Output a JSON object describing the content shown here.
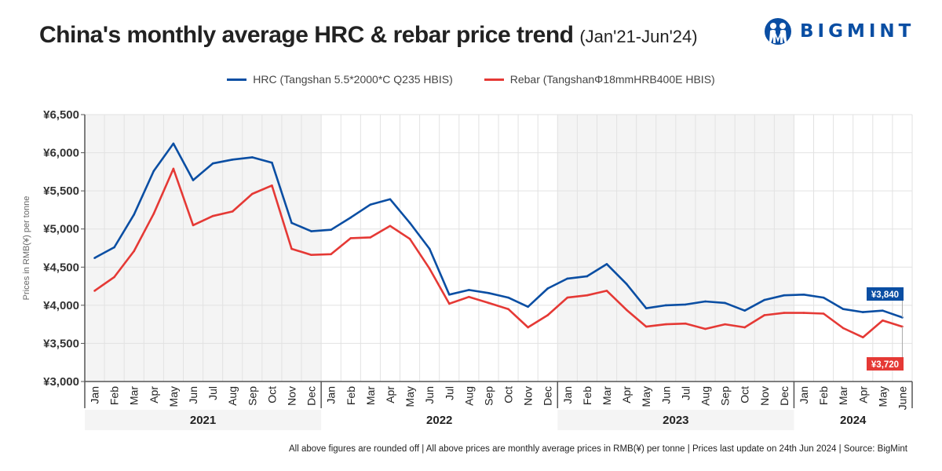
{
  "header": {
    "title": "China's monthly average HRC & rebar price trend",
    "subtitle": "(Jan'21-Jun'24)",
    "logo_text": "BIGMINT"
  },
  "footer": {
    "note": "All above figures are rounded off | All above prices are monthly average prices in RMB(¥) per tonne | Prices last update on 24th Jun 2024 | Source: BigMint"
  },
  "chart_data": {
    "type": "line",
    "title": "China's monthly average HRC & rebar price trend (Jan'21-Jun'24)",
    "xlabel": "",
    "ylabel": "Prices in RMB(¥) per tonne",
    "ylim": [
      3000,
      6500
    ],
    "yticks": [
      3000,
      3500,
      4000,
      4500,
      5000,
      5500,
      6000,
      6500
    ],
    "ytick_labels": [
      "¥3,000",
      "¥3,500",
      "¥4,000",
      "¥4,500",
      "¥5,000",
      "¥5,500",
      "¥6,000",
      "¥6,500"
    ],
    "grid": true,
    "legend_position": "top-center",
    "years": [
      {
        "label": "2021",
        "months": [
          "Jan",
          "Feb",
          "Mar",
          "Apr",
          "May",
          "Jun",
          "Jul",
          "Aug",
          "Sep",
          "Oct",
          "Nov",
          "Dec"
        ],
        "shaded": true
      },
      {
        "label": "2022",
        "months": [
          "Jan",
          "Feb",
          "Mar",
          "Apr",
          "May",
          "Jun",
          "Jul",
          "Aug",
          "Sep",
          "Oct",
          "Nov",
          "Dec"
        ],
        "shaded": false
      },
      {
        "label": "2023",
        "months": [
          "Jan",
          "Feb",
          "Mar",
          "Apr",
          "May",
          "Jun",
          "Jul",
          "Aug",
          "Sep",
          "Oct",
          "Nov",
          "Dec"
        ],
        "shaded": true
      },
      {
        "label": "2024",
        "months": [
          "Jan",
          "Feb",
          "Mar",
          "Apr",
          "May",
          "June"
        ],
        "shaded": false
      }
    ],
    "series": [
      {
        "name": "HRC (Tangshan 5.5*2000*C Q235 HBIS)",
        "color": "#0a4ea3",
        "values": [
          4620,
          4760,
          5190,
          5760,
          6120,
          5640,
          5860,
          5910,
          5940,
          5870,
          5080,
          4970,
          4990,
          5150,
          5320,
          5390,
          5080,
          4740,
          4140,
          4200,
          4160,
          4100,
          3980,
          4220,
          4350,
          4380,
          4540,
          4280,
          3960,
          4000,
          4010,
          4050,
          4030,
          3930,
          4070,
          4130,
          4140,
          4100,
          3950,
          3910,
          3930,
          3840
        ],
        "end_label": "¥3,840"
      },
      {
        "name": "Rebar (TangshanΦ18mmHRB400E HBIS)",
        "color": "#e53935",
        "values": [
          4190,
          4370,
          4710,
          5200,
          5790,
          5050,
          5170,
          5230,
          5460,
          5570,
          4740,
          4660,
          4670,
          4880,
          4890,
          5040,
          4870,
          4480,
          4020,
          4110,
          4030,
          3950,
          3710,
          3870,
          4100,
          4130,
          4190,
          3940,
          3720,
          3750,
          3760,
          3690,
          3750,
          3710,
          3870,
          3900,
          3900,
          3890,
          3700,
          3580,
          3800,
          3720
        ],
        "end_label": "¥3,720"
      }
    ]
  }
}
